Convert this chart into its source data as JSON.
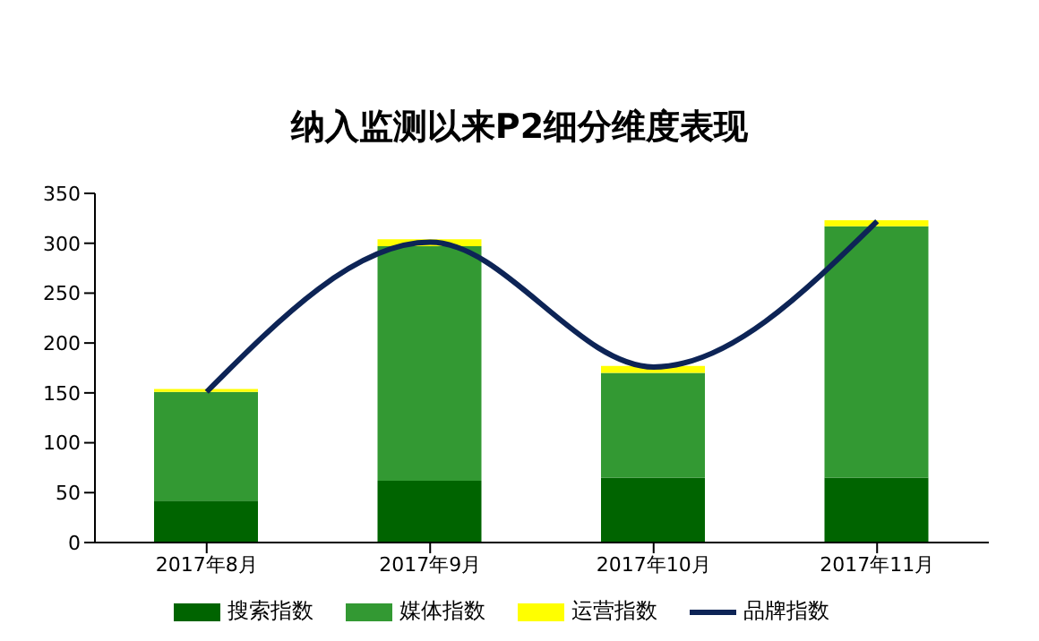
{
  "chart_data": {
    "type": "bar",
    "title": "纳入监测以来P2细分维度表现",
    "categories": [
      "2017年8月",
      "2017年9月",
      "2017年10月",
      "2017年11月"
    ],
    "stacked": true,
    "series": [
      {
        "name": "搜索指数",
        "color": "#006400",
        "values": [
          42,
          62,
          65,
          65
        ]
      },
      {
        "name": "媒体指数",
        "color": "#339933",
        "values": [
          109,
          235,
          105,
          252
        ]
      },
      {
        "name": "运营指数",
        "color": "#ffff00",
        "values": [
          3,
          7,
          7,
          6
        ]
      },
      {
        "name": "品牌指数",
        "type": "line",
        "color": "#0d2456",
        "values": [
          151,
          301,
          176,
          322
        ]
      }
    ],
    "ylim": [
      0,
      350
    ],
    "yticks": [
      0,
      50,
      100,
      150,
      200,
      250,
      300,
      350
    ],
    "grid": false,
    "legend": "bottom",
    "marker": "none"
  }
}
